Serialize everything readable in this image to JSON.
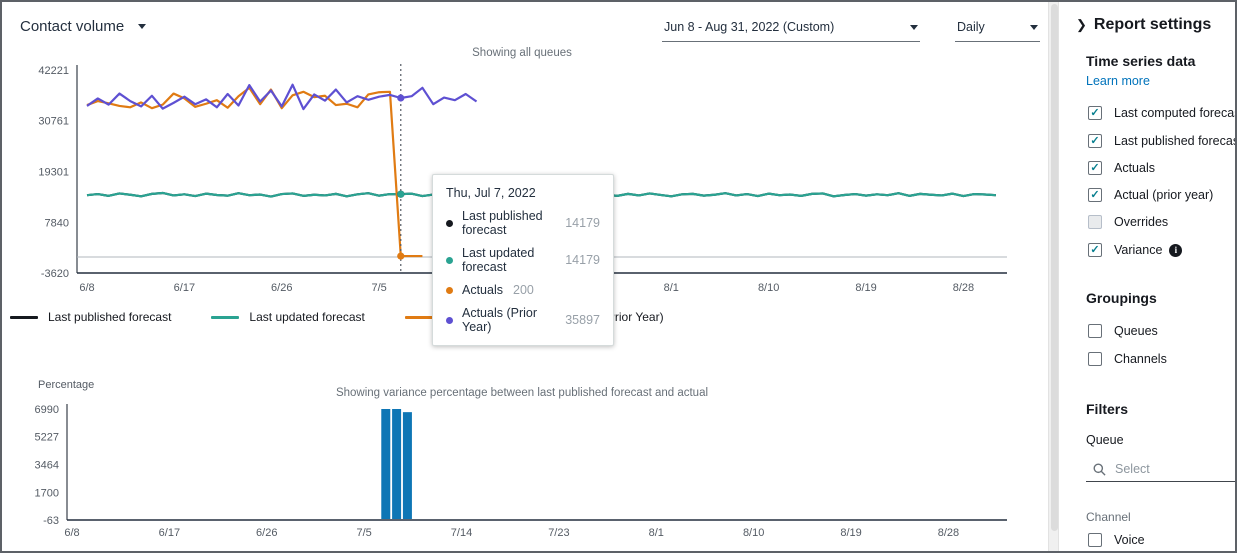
{
  "header": {
    "metric_label": "Contact volume",
    "date_range": "Jun 8 - Aug 31, 2022 (Custom)",
    "granularity": "Daily"
  },
  "tooltip": {
    "title": "Thu, Jul 7, 2022",
    "rows": [
      {
        "label": "Last published forecast",
        "value": "14179",
        "color": "#16191f"
      },
      {
        "label": "Last updated forecast",
        "value": "14179",
        "color": "#2aa392"
      },
      {
        "label": "Actuals",
        "value": "200",
        "color": "#e07b13"
      },
      {
        "label": "Actuals (Prior Year)",
        "value": "35897",
        "color": "#5e50d2"
      }
    ]
  },
  "legend": [
    {
      "label": "Last published forecast",
      "color": "#16191f"
    },
    {
      "label": "Last updated forecast",
      "color": "#2aa392"
    },
    {
      "label": "Actuals",
      "color": "#e07b13"
    },
    {
      "label": "Actuals (Prior Year)",
      "color": "#5e50d2"
    }
  ],
  "sidebar": {
    "title": "Report settings",
    "time_series": {
      "heading": "Time series data",
      "link": "Learn more",
      "items": [
        {
          "label": "Last computed forecast",
          "checked": true
        },
        {
          "label": "Last published forecast",
          "checked": true
        },
        {
          "label": "Actuals",
          "checked": true
        },
        {
          "label": "Actual (prior year)",
          "checked": true
        },
        {
          "label": "Overrides",
          "checked": false
        },
        {
          "label": "Variance",
          "checked": true,
          "info": true
        }
      ]
    },
    "groupings": {
      "heading": "Groupings",
      "items": [
        {
          "label": "Queues",
          "checked": false
        },
        {
          "label": "Channels",
          "checked": false
        }
      ]
    },
    "filters": {
      "heading": "Filters",
      "queue_label": "Queue",
      "queue_placeholder": "Select",
      "channel_label": "Channel",
      "channel_items": [
        {
          "label": "Voice",
          "checked": false
        }
      ]
    }
  },
  "chart_data": [
    {
      "type": "line",
      "title": "Showing all queues",
      "xlabel": "",
      "ylabel": "",
      "ylim": [
        -3620,
        42221
      ],
      "y_ticks": [
        42221,
        30761,
        19301,
        7840,
        -3620
      ],
      "x_tick_labels": [
        "6/8",
        "6/17",
        "6/26",
        "7/5",
        "7/14",
        "7/23",
        "8/1",
        "8/10",
        "8/19",
        "8/28"
      ],
      "x_tick_indices": [
        0,
        9,
        18,
        27,
        36,
        45,
        54,
        63,
        72,
        81
      ],
      "x_range_note": "daily points, Jun 8 - Aug 31 2022",
      "zero_line": true,
      "hover_index": 29,
      "series": [
        {
          "name": "Last published forecast",
          "color": "#16191f",
          "values_from": 1
        },
        {
          "name": "Last updated forecast",
          "color": "#2aa392",
          "values": [
            13950,
            14200,
            13800,
            14350,
            14050,
            13700,
            14250,
            14450,
            13900,
            14150,
            13750,
            14300,
            14000,
            13850,
            14400,
            13950,
            14100,
            13650,
            14200,
            14350,
            13800,
            14050,
            13900,
            14250,
            13700,
            14150,
            14400,
            13850,
            14200,
            14179,
            14300,
            13750,
            14100,
            14250,
            13800,
            14000,
            14350,
            13900,
            14150,
            13700,
            14250,
            14050,
            13850,
            14400,
            13950,
            14200,
            13750,
            14300,
            14100,
            13800,
            14250,
            13900,
            14350,
            14000,
            13700,
            14150,
            14250,
            13850,
            14050,
            14400,
            13900,
            14200,
            13750,
            14300,
            13950,
            14100,
            13800,
            14250,
            14350,
            13700,
            14000,
            14200,
            13850,
            14150,
            13950,
            14400,
            13800,
            14250,
            14050,
            13900,
            14300,
            13750,
            14200,
            14100,
            13950
          ]
        },
        {
          "name": "Actuals",
          "color": "#e07b13",
          "values": [
            34300,
            35200,
            34700,
            34100,
            33800,
            34900,
            33600,
            34400,
            36900,
            35800,
            33900,
            34600,
            35400,
            33700,
            36300,
            38200,
            34500,
            37800,
            33600,
            36500,
            37300,
            36100,
            36400,
            34300,
            34600,
            33800,
            36700,
            37200,
            37300,
            200,
            200,
            200
          ]
        },
        {
          "name": "Actuals (Prior Year)",
          "color": "#5e50d2",
          "values": [
            34100,
            35800,
            34400,
            36900,
            35200,
            34000,
            36400,
            33500,
            34800,
            36200,
            34500,
            35600,
            33800,
            36800,
            34200,
            38800,
            35100,
            37600,
            34000,
            38900,
            33400,
            36700,
            35300,
            37800,
            34900,
            36300,
            35500,
            36200,
            36600,
            35897,
            36300,
            38200,
            34500,
            36000,
            35400,
            36800,
            35100
          ]
        }
      ]
    },
    {
      "type": "bar",
      "title": "Showing variance percentage between last published forecast and actual",
      "xlabel": "",
      "ylabel": "Percentage",
      "ylim": [
        -63,
        6990
      ],
      "y_ticks": [
        6990,
        5227,
        3464,
        1700,
        -63
      ],
      "x_tick_labels": [
        "6/8",
        "6/17",
        "6/26",
        "7/5",
        "7/14",
        "7/23",
        "8/1",
        "8/10",
        "8/19",
        "8/28"
      ],
      "x_tick_indices": [
        0,
        9,
        18,
        27,
        36,
        45,
        54,
        63,
        72,
        81
      ],
      "bar_color": "#0e76b5",
      "bars": [
        {
          "index": 29,
          "value": 6990
        },
        {
          "index": 30,
          "value": 6990
        },
        {
          "index": 31,
          "value": 6790
        }
      ]
    }
  ]
}
